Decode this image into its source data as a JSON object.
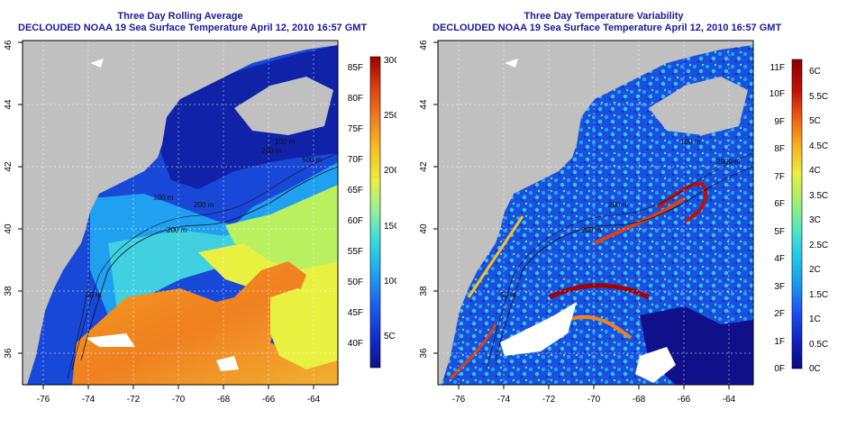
{
  "left": {
    "title_line1": "Three Day Rolling Average",
    "title_line2": "DECLOUDED NOAA 19 Sea Surface Temperature April 12, 2010 16:57 GMT",
    "x_ticks": [
      "-76",
      "-74",
      "-72",
      "-70",
      "-68",
      "-66",
      "-64"
    ],
    "y_ticks": [
      "36",
      "38",
      "40",
      "42",
      "44",
      "46"
    ],
    "contour_labels": [
      "200 m",
      "200 m",
      "100 m",
      "50 m",
      "200 m",
      "100 m",
      "500 m"
    ],
    "colorbar": {
      "f_labels": [
        "40F",
        "45F",
        "50F",
        "55F",
        "60F",
        "65F",
        "70F",
        "75F",
        "80F",
        "85F"
      ],
      "c_labels": [
        "5C",
        "10C",
        "15C",
        "20C",
        "25C",
        "30C"
      ]
    }
  },
  "right": {
    "title_line1": "Three Day Temperature Variability",
    "title_line2": "DECLOUDED NOAA 19 Sea Surface Temperature April 12, 2010 16:57 GMT",
    "x_ticks": [
      "-76",
      "-74",
      "-72",
      "-70",
      "-68",
      "-66",
      "-64"
    ],
    "y_ticks": [
      "36",
      "38",
      "40",
      "42",
      "44",
      "46"
    ],
    "contour_labels": [
      "200 m",
      "100 m",
      "2000 m",
      "50 m",
      "200 m"
    ],
    "colorbar": {
      "f_labels": [
        "0F",
        "1F",
        "2F",
        "3F",
        "4F",
        "5F",
        "6F",
        "7F",
        "8F",
        "9F",
        "10F",
        "11F"
      ],
      "c_labels": [
        "0C",
        "0.5C",
        "1C",
        "1.5C",
        "2C",
        "2.5C",
        "3C",
        "3.5C",
        "4C",
        "4.5C",
        "5C",
        "5.5C",
        "6C"
      ]
    }
  },
  "colors": {
    "land": "#c0c0c0",
    "title": "#1a1a9c",
    "colorbar_sst": [
      "#10108a",
      "#1030d0",
      "#1a60f0",
      "#20a0f0",
      "#30d8e0",
      "#90f0a0",
      "#e8f040",
      "#f8c020",
      "#f08020",
      "#e04010",
      "#a00000"
    ],
    "colorbar_var": [
      "#0a0a80",
      "#1020c0",
      "#1a50f0",
      "#1898f0",
      "#20c8e8",
      "#50e8c0",
      "#a0f070",
      "#e8f040",
      "#f8b020",
      "#f06010",
      "#c01008",
      "#8a0000"
    ]
  }
}
